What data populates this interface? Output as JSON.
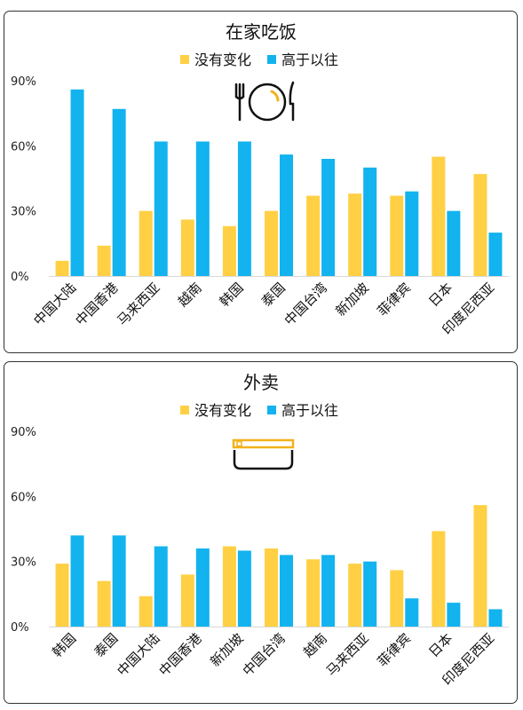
{
  "colors": {
    "no_change": "#FFD044",
    "higher": "#12B3EE",
    "icon": "#111111",
    "icon_accent": "#F2B21C"
  },
  "chart_data": [
    {
      "type": "bar",
      "title": "在家吃饭",
      "icon": "plate-cutlery-icon",
      "categories": [
        "中国大陆",
        "中国香港",
        "马来西亚",
        "越南",
        "韩国",
        "泰国",
        "中国台湾",
        "新加坡",
        "菲律宾",
        "日本",
        "印度尼西亚"
      ],
      "series": [
        {
          "name": "没有变化",
          "values": [
            7,
            14,
            30,
            26,
            23,
            30,
            37,
            38,
            37,
            55,
            47
          ]
        },
        {
          "name": "高于以往",
          "values": [
            86,
            77,
            62,
            62,
            62,
            56,
            54,
            50,
            39,
            30,
            20
          ]
        }
      ],
      "yticks": [
        "0%",
        "30%",
        "60%",
        "90%"
      ],
      "ylim": [
        0,
        90
      ],
      "legend": "top-center",
      "grid": false
    },
    {
      "type": "bar",
      "title": "外卖",
      "icon": "takeout-box-icon",
      "categories": [
        "韩国",
        "泰国",
        "中国大陆",
        "中国香港",
        "新加坡",
        "中国台湾",
        "越南",
        "马来西亚",
        "菲律宾",
        "日本",
        "印度尼西亚"
      ],
      "series": [
        {
          "name": "没有变化",
          "values": [
            29,
            21,
            14,
            24,
            37,
            36,
            31,
            29,
            26,
            44,
            56
          ]
        },
        {
          "name": "高于以往",
          "values": [
            42,
            42,
            37,
            36,
            35,
            33,
            33,
            30,
            13,
            11,
            8
          ]
        }
      ],
      "yticks": [
        "0%",
        "30%",
        "60%",
        "90%"
      ],
      "ylim": [
        0,
        90
      ],
      "legend": "top-center",
      "grid": false
    }
  ]
}
